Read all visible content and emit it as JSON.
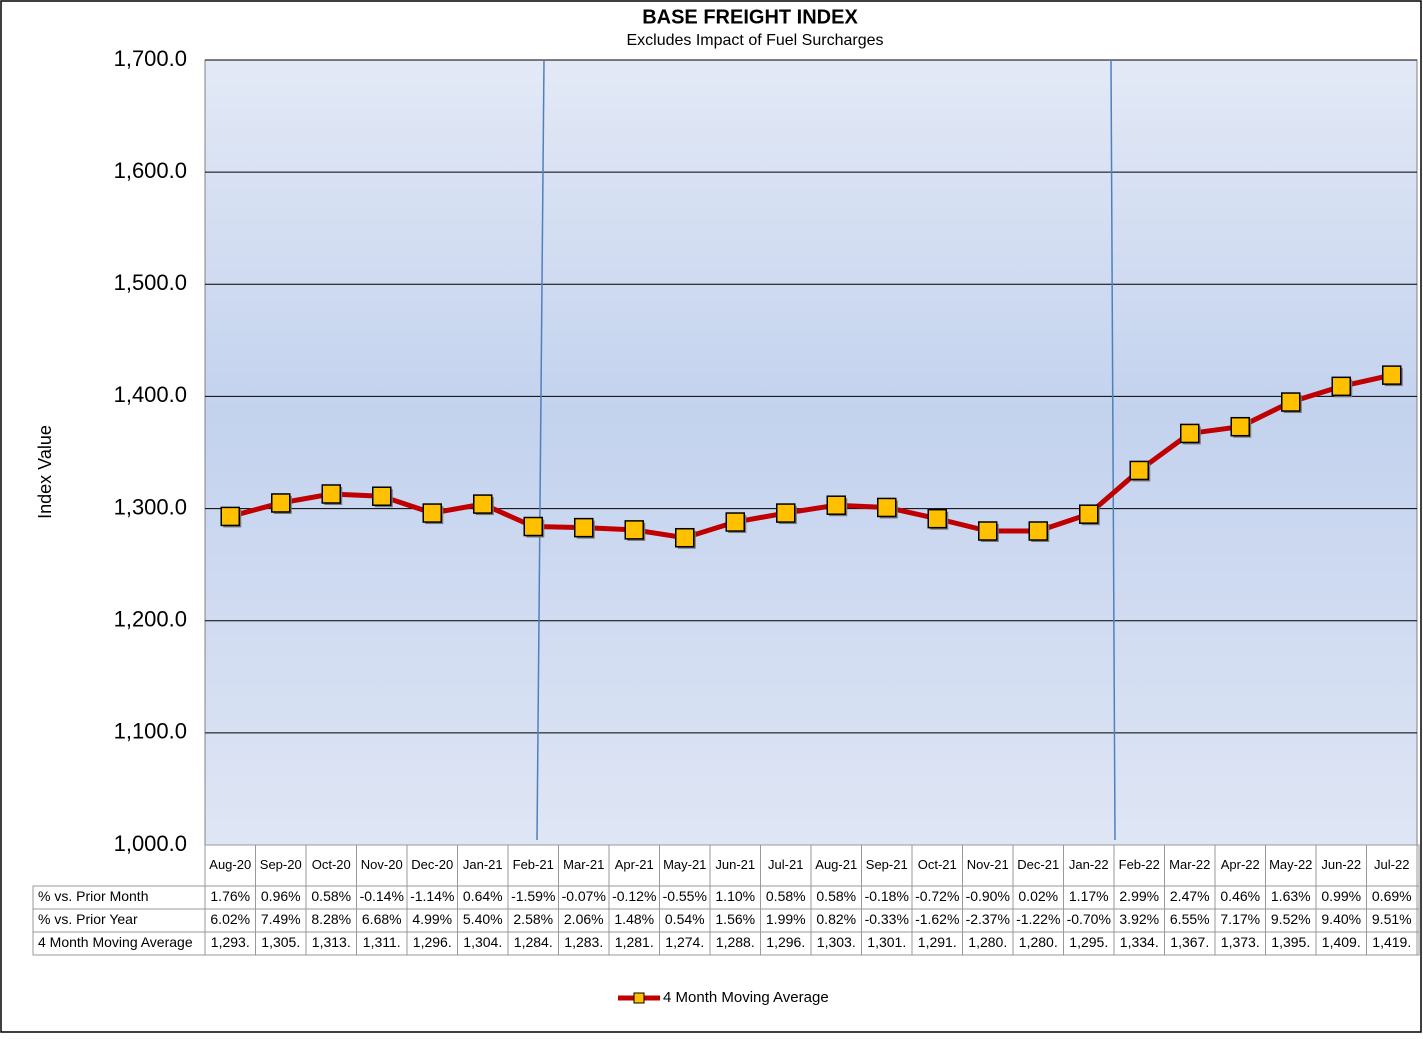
{
  "chart_data": {
    "type": "line",
    "title": "BASE FREIGHT INDEX",
    "subtitle": "Excludes Impact of Fuel Surcharges",
    "y_label": "Index Value",
    "categories": [
      "Aug-20",
      "Sep-20",
      "Oct-20",
      "Nov-20",
      "Dec-20",
      "Jan-21",
      "Feb-21",
      "Mar-21",
      "Apr-21",
      "May-21",
      "Jun-21",
      "Jul-21",
      "Aug-21",
      "Sep-21",
      "Oct-21",
      "Nov-21",
      "Dec-21",
      "Jan-22",
      "Feb-22",
      "Mar-22",
      "Apr-22",
      "May-22",
      "Jun-22",
      "Jul-22"
    ],
    "series": [
      {
        "name": "4 Month Moving Average",
        "color": "#c00000",
        "marker_color": "#ffc000",
        "values": [
          1293,
          1305,
          1313,
          1311,
          1296,
          1304,
          1284,
          1283,
          1281,
          1274,
          1288,
          1296,
          1303,
          1301,
          1291,
          1280,
          1280,
          1295,
          1334,
          1367,
          1373,
          1395,
          1409,
          1419
        ],
        "value_labels": [
          "1,293.",
          "1,305.",
          "1,313.",
          "1,311.",
          "1,296.",
          "1,304.",
          "1,284.",
          "1,283.",
          "1,281.",
          "1,274.",
          "1,288.",
          "1,296.",
          "1,303.",
          "1,301.",
          "1,291.",
          "1,280.",
          "1,280.",
          "1,295.",
          "1,334.",
          "1,367.",
          "1,373.",
          "1,395.",
          "1,409.",
          "1,419."
        ]
      }
    ],
    "table": [
      {
        "label": "% vs. Prior Month",
        "cells": [
          "1.76%",
          "0.96%",
          "0.58%",
          "-0.14%",
          "-1.14%",
          "0.64%",
          "-1.59%",
          "-0.07%",
          "-0.12%",
          "-0.55%",
          "1.10%",
          "0.58%",
          "0.58%",
          "-0.18%",
          "-0.72%",
          "-0.90%",
          "0.02%",
          "1.17%",
          "2.99%",
          "2.47%",
          "0.46%",
          "1.63%",
          "0.99%",
          "0.69%"
        ]
      },
      {
        "label": "% vs. Prior Year",
        "cells": [
          "6.02%",
          "7.49%",
          "8.28%",
          "6.68%",
          "4.99%",
          "5.40%",
          "2.58%",
          "2.06%",
          "1.48%",
          "0.54%",
          "1.56%",
          "1.99%",
          "0.82%",
          "-0.33%",
          "-1.62%",
          "-2.37%",
          "-1.22%",
          "-0.70%",
          "3.92%",
          "6.55%",
          "7.17%",
          "9.52%",
          "9.40%",
          "9.51%"
        ]
      }
    ],
    "ylim": [
      1000,
      1700
    ],
    "yticks": [
      {
        "value": 1000,
        "label": "1,000.0"
      },
      {
        "value": 1100,
        "label": "1,100.0"
      },
      {
        "value": 1200,
        "label": "1,200.0"
      },
      {
        "value": 1300,
        "label": "1,300.0"
      },
      {
        "value": 1400,
        "label": "1,400.0"
      },
      {
        "value": 1500,
        "label": "1,500.0"
      },
      {
        "value": 1600,
        "label": "1,600.0"
      },
      {
        "value": 1700,
        "label": "1,700.0"
      }
    ],
    "grid": true
  }
}
